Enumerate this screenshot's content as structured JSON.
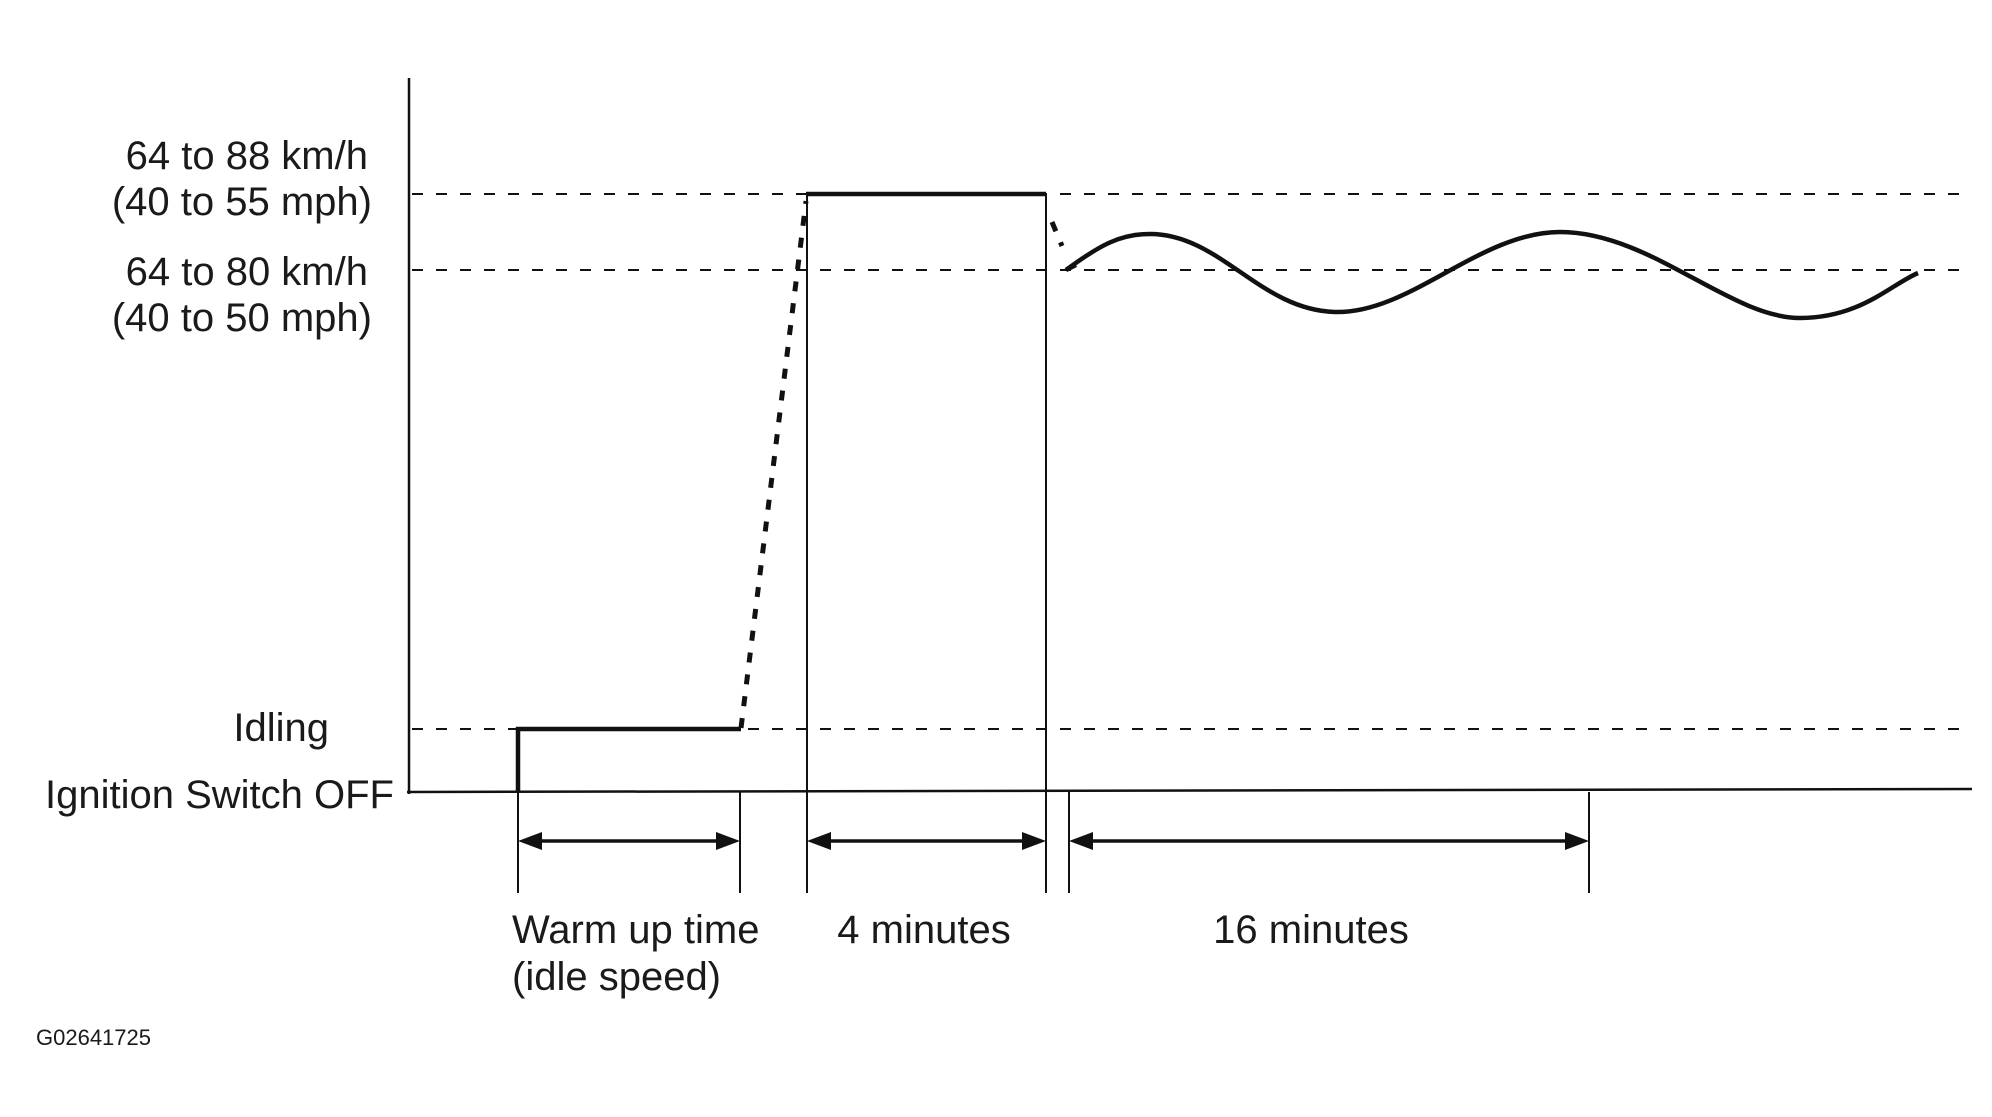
{
  "y_levels": {
    "upper": {
      "line1": "64 to 88 km/h",
      "line2": "(40 to 55 mph)"
    },
    "lower": {
      "line1": "64 to 80 km/h",
      "line2": "(40 to 50 mph)"
    },
    "idling": "Idling",
    "off": "Ignition Switch OFF"
  },
  "intervals": {
    "warmup": {
      "line1": "Warm up time",
      "line2": "(idle speed)"
    },
    "four": "4 minutes",
    "sixteen": "16 minutes"
  },
  "figure_id": "G02641725"
}
